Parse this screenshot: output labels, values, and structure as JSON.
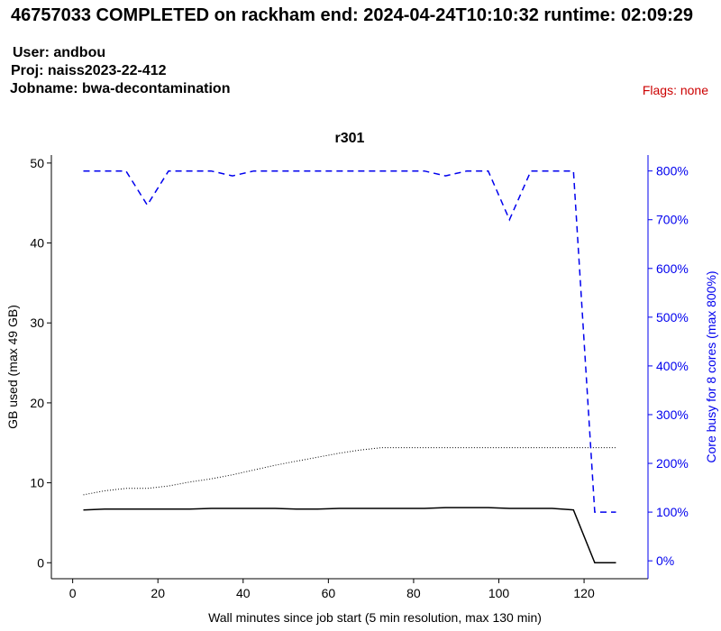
{
  "header": {
    "title": "46757033 COMPLETED on rackham  end: 2024-04-24T10:10:32  runtime: 02:09:29",
    "user": "User: andbou",
    "proj": "Proj: naiss2023-22-412",
    "jobname": "Jobname: bwa-decontamination",
    "flags": "Flags: none",
    "flags_color": "#cc0000"
  },
  "chart_data": {
    "type": "line",
    "title": "r301",
    "xlabel": "Wall minutes since job start (5 min resolution, max 130 min)",
    "ylabel_left": "GB used (max 49 GB)",
    "ylabel_right": "Core busy for 8 cores (max 800%)",
    "xlim": [
      -5,
      135
    ],
    "ylim_left": [
      -2,
      51
    ],
    "ylim_right": [
      -36.7,
      832.7
    ],
    "x_ticks": [
      0,
      20,
      40,
      60,
      80,
      100,
      120
    ],
    "y_ticks_left": [
      0,
      10,
      20,
      30,
      40,
      50
    ],
    "y_ticks_right": [
      0,
      100,
      200,
      300,
      400,
      500,
      600,
      700,
      800
    ],
    "y_tick_suffix_right": "%",
    "grid": false,
    "legend": "none",
    "colors": {
      "axis": "#000000",
      "core": "#0000ee"
    },
    "series": [
      {
        "axis": "left",
        "style": "solid",
        "color": "#000000",
        "x": [
          2.5,
          7.5,
          12.5,
          17.5,
          22.5,
          27.5,
          32.5,
          37.5,
          42.5,
          47.5,
          52.5,
          57.5,
          62.5,
          67.5,
          72.5,
          77.5,
          82.5,
          87.5,
          92.5,
          97.5,
          102.5,
          107.5,
          112.5,
          117.5,
          122.5,
          127.5
        ],
        "y": [
          6.6,
          6.7,
          6.7,
          6.7,
          6.7,
          6.7,
          6.8,
          6.8,
          6.8,
          6.8,
          6.7,
          6.7,
          6.8,
          6.8,
          6.8,
          6.8,
          6.8,
          6.9,
          6.9,
          6.9,
          6.8,
          6.8,
          6.8,
          6.6,
          0.0,
          0.0
        ]
      },
      {
        "axis": "left",
        "style": "dotted",
        "color": "#000000",
        "x": [
          2.5,
          7.5,
          12.5,
          17.5,
          22.5,
          27.5,
          32.5,
          37.5,
          42.5,
          47.5,
          52.5,
          57.5,
          62.5,
          67.5,
          72.5,
          77.5,
          82.5,
          87.5,
          92.5,
          97.5,
          102.5,
          107.5,
          112.5,
          117.5,
          122.5,
          127.5
        ],
        "y": [
          8.5,
          9.0,
          9.3,
          9.3,
          9.6,
          10.1,
          10.5,
          11.0,
          11.6,
          12.2,
          12.7,
          13.2,
          13.7,
          14.1,
          14.4,
          14.4,
          14.4,
          14.4,
          14.4,
          14.4,
          14.4,
          14.4,
          14.4,
          14.4,
          14.4,
          14.4
        ]
      },
      {
        "axis": "right",
        "style": "dashed",
        "color": "#0000ee",
        "x": [
          2.5,
          7.5,
          12.5,
          17.5,
          22.5,
          27.5,
          32.5,
          37.5,
          42.5,
          47.5,
          52.5,
          57.5,
          62.5,
          67.5,
          72.5,
          77.5,
          82.5,
          87.5,
          92.5,
          97.5,
          102.5,
          107.5,
          112.5,
          117.5,
          122.5,
          127.5
        ],
        "y": [
          800,
          800,
          800,
          730,
          800,
          800,
          800,
          790,
          800,
          800,
          800,
          800,
          800,
          800,
          800,
          800,
          800,
          790,
          800,
          800,
          700,
          800,
          800,
          800,
          100,
          100
        ]
      }
    ]
  }
}
